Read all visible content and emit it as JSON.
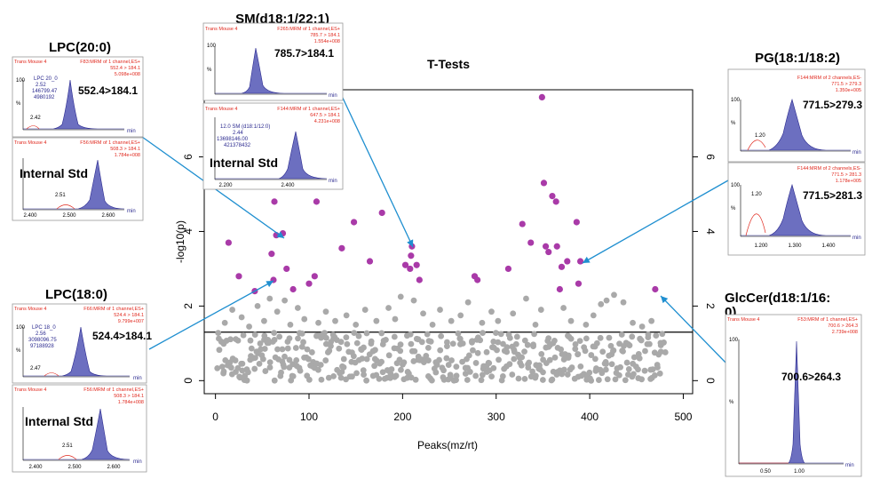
{
  "chart_data": {
    "type": "scatter",
    "title": "T-Tests",
    "xlabel": "Peaks(mz/rt)",
    "ylabel": "-log10(p)",
    "xlim": [
      -12,
      510
    ],
    "ylim": [
      -0.35,
      7.8
    ],
    "xticks": [
      0,
      100,
      200,
      300,
      400,
      500
    ],
    "yticks": [
      0,
      2,
      4,
      6
    ],
    "threshold": 1.3,
    "colors": {
      "significant": "#a93aa8",
      "nonsignificant": "#a9a9a9",
      "arrow": "#1f8fd0"
    },
    "significant_points": [
      [
        14,
        3.7
      ],
      [
        25,
        2.8
      ],
      [
        42,
        2.4
      ],
      [
        60,
        3.4
      ],
      [
        62,
        2.7
      ],
      [
        63,
        4.8
      ],
      [
        65,
        3.9
      ],
      [
        72,
        3.95
      ],
      [
        76,
        3.0
      ],
      [
        83,
        2.45
      ],
      [
        100,
        2.6
      ],
      [
        106,
        2.8
      ],
      [
        108,
        4.8
      ],
      [
        135,
        3.55
      ],
      [
        148,
        4.25
      ],
      [
        165,
        3.2
      ],
      [
        178,
        4.5
      ],
      [
        203,
        3.1
      ],
      [
        208,
        3.0
      ],
      [
        209,
        3.35
      ],
      [
        210,
        3.6
      ],
      [
        215,
        3.1
      ],
      [
        218,
        2.7
      ],
      [
        277,
        2.8
      ],
      [
        280,
        2.7
      ],
      [
        313,
        3.0
      ],
      [
        328,
        4.2
      ],
      [
        337,
        3.7
      ],
      [
        349,
        7.6
      ],
      [
        351,
        5.3
      ],
      [
        353,
        3.6
      ],
      [
        356,
        3.45
      ],
      [
        360,
        4.95
      ],
      [
        364,
        4.8
      ],
      [
        365,
        3.6
      ],
      [
        368,
        2.45
      ],
      [
        370,
        3.05
      ],
      [
        376,
        3.2
      ],
      [
        386,
        4.25
      ],
      [
        388,
        2.6
      ],
      [
        390,
        3.2
      ],
      [
        470,
        2.45
      ]
    ],
    "nonsignificant_points": [
      [
        10,
        1.55
      ],
      [
        18,
        1.9
      ],
      [
        28,
        1.7
      ],
      [
        36,
        1.45
      ],
      [
        45,
        2.0
      ],
      [
        52,
        1.6
      ],
      [
        58,
        2.2
      ],
      [
        66,
        1.85
      ],
      [
        74,
        2.15
      ],
      [
        80,
        1.5
      ],
      [
        88,
        1.95
      ],
      [
        95,
        1.65
      ],
      [
        110,
        1.55
      ],
      [
        118,
        1.85
      ],
      [
        128,
        1.6
      ],
      [
        140,
        1.75
      ],
      [
        150,
        1.5
      ],
      [
        160,
        1.9
      ],
      [
        172,
        1.6
      ],
      [
        185,
        1.95
      ],
      [
        192,
        1.65
      ],
      [
        198,
        2.25
      ],
      [
        212,
        2.15
      ],
      [
        222,
        1.8
      ],
      [
        232,
        1.5
      ],
      [
        240,
        1.9
      ],
      [
        252,
        1.6
      ],
      [
        262,
        1.75
      ],
      [
        270,
        2.1
      ],
      [
        285,
        1.55
      ],
      [
        295,
        1.85
      ],
      [
        302,
        1.6
      ],
      [
        318,
        1.8
      ],
      [
        332,
        2.2
      ],
      [
        342,
        1.5
      ],
      [
        348,
        1.9
      ],
      [
        372,
        1.95
      ],
      [
        380,
        1.6
      ],
      [
        396,
        1.5
      ],
      [
        404,
        1.75
      ],
      [
        412,
        2.05
      ],
      [
        418,
        2.15
      ],
      [
        426,
        2.3
      ],
      [
        436,
        2.1
      ],
      [
        446,
        1.55
      ],
      [
        456,
        1.45
      ],
      [
        466,
        1.6
      ]
    ],
    "insets": [
      {
        "compound": "LPC(20:0)",
        "transition": "552.4>184.1",
        "target_header": [
          "Trans Mouse 4",
          "F83:MRM of 1 channel,ES+",
          "552.4 > 184.1",
          "5.098e+008"
        ],
        "peak_label": [
          "LPC 20_0",
          "2.52",
          "146799.47",
          "4980192"
        ],
        "target_small_rt": "2.42",
        "std_header": [
          "Trans Mouse 4",
          "F56:MRM of 1 channel,ES+",
          "508.3 > 184.1",
          "1.784e+008"
        ],
        "std_label": "Internal Std",
        "std_small_rt": "2.51",
        "x_ticks": [
          "2.400",
          "2.500",
          "2.600"
        ],
        "y_tick": "100",
        "min_label": "min"
      },
      {
        "compound": "LPC(18:0)",
        "transition": "524.4>184.1",
        "target_header": [
          "Trans Mouse 4",
          "F66:MRM of 1 channel,ES+",
          "524.4 > 184.1",
          "9.799e+007"
        ],
        "peak_label": [
          "LPC 18_0",
          "2.56",
          "3098096.75",
          "97188928"
        ],
        "target_small_rt": "2.47",
        "std_header": [
          "Trans Mouse 4",
          "F56:MRM of 1 channel,ES+",
          "508.3 > 184.1",
          "1.784e+008"
        ],
        "std_label": "Internal Std",
        "std_small_rt": "2.51",
        "x_ticks": [
          "2.400",
          "2.500",
          "2.600"
        ],
        "y_tick": "100",
        "min_label": "min"
      },
      {
        "compound": "SM(d18:1/22:1)",
        "transition": "785.7>184.1",
        "target_header": [
          "Trans Mouse 4",
          "F265:MRM of 1 channel,ES+",
          "785.7 > 184.1",
          "1.554e+008"
        ],
        "std_header": [
          "Trans Mouse 4",
          "F144:MRM of 1 channel,ES+",
          "647.5 > 184.1",
          "4.231e+008"
        ],
        "std_peak_label": [
          "12.0 SM (d18:1/12:0)",
          "2.44",
          "13698146.00",
          "421378432"
        ],
        "std_label": "Internal Std",
        "x_ticks": [
          "2.200",
          "2.400"
        ],
        "y_tick": "100",
        "min_label": "min"
      },
      {
        "compound": "PG(18:1/18:2)",
        "transition_top": "771.5>279.3",
        "transition_bottom": "771.5>281.3",
        "top_header": [
          "F144:MRM of 2 channels,ES-",
          "771.5 > 279.3",
          "1.350e+005"
        ],
        "bottom_header": [
          "F144:MRM of 2 channels,ES-",
          "771.5 > 281.3",
          "1.178e+005"
        ],
        "rt": "1.20",
        "x_ticks": [
          "1.200",
          "1.300",
          "1.400"
        ],
        "y_tick": "100",
        "min_label": "min"
      },
      {
        "compound": "GlcCer(d18:1/16:",
        "compound_overflow": "0)",
        "transition": "700.6>264.3",
        "header": [
          "Trans Mouse 4",
          "F53:MRM of 1 channel,ES+",
          "700.6 > 264.3",
          "2.739e+008"
        ],
        "x_ticks": [
          "0.50",
          "1.00"
        ],
        "y_tick": "100",
        "min_label": "min"
      }
    ]
  }
}
